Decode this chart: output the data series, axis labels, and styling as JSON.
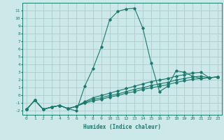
{
  "xlabel": "Humidex (Indice chaleur)",
  "xlim": [
    -0.5,
    23.5
  ],
  "ylim": [
    -2.5,
    12.0
  ],
  "xticks": [
    0,
    1,
    2,
    3,
    4,
    5,
    6,
    7,
    8,
    9,
    10,
    11,
    12,
    13,
    14,
    15,
    16,
    17,
    18,
    19,
    20,
    21,
    22,
    23
  ],
  "yticks": [
    -2,
    -1,
    0,
    1,
    2,
    3,
    4,
    5,
    6,
    7,
    8,
    9,
    10,
    11
  ],
  "bg_color": "#cce8e8",
  "line_color": "#1a7a6e",
  "grid_color": "#aacccc",
  "lines": [
    {
      "x": [
        0,
        1,
        2,
        3,
        4,
        5,
        6,
        7,
        8,
        9,
        10,
        11,
        12,
        13,
        14,
        15,
        16,
        17,
        18,
        19,
        20,
        21,
        22,
        23
      ],
      "y": [
        -1.8,
        -0.6,
        -1.8,
        -1.5,
        -1.3,
        -1.7,
        -2.0,
        1.2,
        3.5,
        6.3,
        9.8,
        10.9,
        11.2,
        11.3,
        8.7,
        4.2,
        0.5,
        1.2,
        3.2,
        3.0,
        2.5,
        2.2,
        2.3,
        2.4
      ]
    },
    {
      "x": [
        0,
        1,
        2,
        3,
        4,
        5,
        6,
        7,
        8,
        9,
        10,
        11,
        12,
        13,
        14,
        15,
        16,
        17,
        18,
        19,
        20,
        21,
        22,
        23
      ],
      "y": [
        -1.8,
        -0.6,
        -1.8,
        -1.5,
        -1.3,
        -1.7,
        -1.4,
        -0.8,
        -0.3,
        0.0,
        0.3,
        0.6,
        0.9,
        1.2,
        1.5,
        1.8,
        2.0,
        2.2,
        2.5,
        2.7,
        2.9,
        3.0,
        2.3,
        2.4
      ]
    },
    {
      "x": [
        0,
        1,
        2,
        3,
        4,
        5,
        6,
        7,
        8,
        9,
        10,
        11,
        12,
        13,
        14,
        15,
        16,
        17,
        18,
        19,
        20,
        21,
        22,
        23
      ],
      "y": [
        -1.8,
        -0.6,
        -1.8,
        -1.5,
        -1.3,
        -1.7,
        -1.4,
        -0.9,
        -0.5,
        -0.3,
        0.0,
        0.2,
        0.5,
        0.8,
        1.0,
        1.3,
        1.5,
        1.7,
        2.0,
        2.2,
        2.4,
        2.5,
        2.3,
        2.4
      ]
    },
    {
      "x": [
        0,
        1,
        2,
        3,
        4,
        5,
        6,
        7,
        8,
        9,
        10,
        11,
        12,
        13,
        14,
        15,
        16,
        17,
        18,
        19,
        20,
        21,
        22,
        23
      ],
      "y": [
        -1.8,
        -0.6,
        -1.8,
        -1.5,
        -1.3,
        -1.7,
        -1.4,
        -1.0,
        -0.7,
        -0.5,
        -0.2,
        0.0,
        0.3,
        0.5,
        0.8,
        1.0,
        1.2,
        1.4,
        1.7,
        1.9,
        2.1,
        2.2,
        2.3,
        2.4
      ]
    }
  ]
}
